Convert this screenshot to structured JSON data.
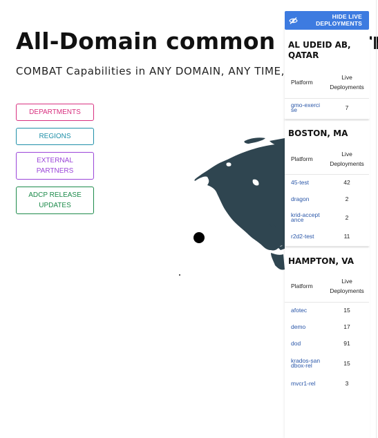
{
  "header": {
    "title": "All-Domain common Platform",
    "subtitle": "COMBAT Capabilities in ANY DOMAIN, ANY TIME, ANY PLACE"
  },
  "nav": {
    "departments": "DEPARTMENTS",
    "regions": "REGIONS",
    "external_partners": "EXTERNAL PARTNERS",
    "release_updates": "ADCP RELEASE UPDATES"
  },
  "colors": {
    "departments": "#d8307f",
    "regions": "#1e8fa8",
    "external_partners": "#9a44d8",
    "release_updates": "#1c8a4a",
    "globe": "#2f4550",
    "accent": "#3d7be0"
  },
  "deployments_panel": {
    "toggle_label": "HIDE LIVE DEPLOYMENTS",
    "toggle_icon": "eye-off-icon",
    "column_platform": "Platform",
    "column_live": "Live Deployments",
    "locations": [
      {
        "name": "AL UDEID AB, QATAR",
        "rows": [
          {
            "platform": "gmo-exercise",
            "count": "7"
          }
        ]
      },
      {
        "name": "BOSTON, MA",
        "rows": [
          {
            "platform": "45-test",
            "count": "42"
          },
          {
            "platform": "dragon",
            "count": "2"
          },
          {
            "platform": "krid-acceptance",
            "count": "2"
          },
          {
            "platform": "r2d2-test",
            "count": "11"
          }
        ]
      },
      {
        "name": "HAMPTON, VA",
        "rows": [
          {
            "platform": "afotec",
            "count": "15"
          },
          {
            "platform": "demo",
            "count": "17"
          },
          {
            "platform": "dod",
            "count": "91"
          },
          {
            "platform": "krados-sandbox-rel",
            "count": "15"
          },
          {
            "platform": "mvcr1-rel",
            "count": "3"
          }
        ]
      }
    ]
  }
}
